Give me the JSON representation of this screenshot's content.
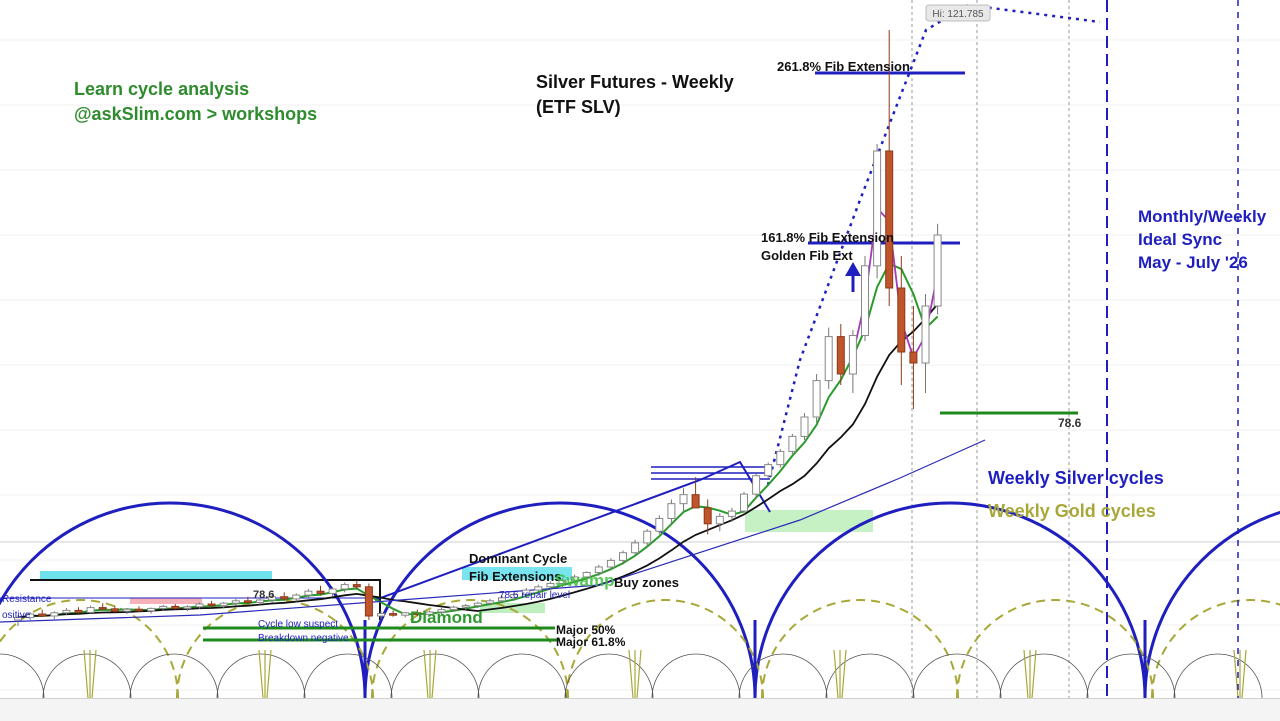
{
  "chart_data": {
    "type": "candlestick",
    "title": "Silver Futures - Weekly",
    "subtitle": "(ETF SLV)",
    "promo": {
      "line1": "Learn cycle analysis",
      "line2": "@askSlim.com > workshops"
    },
    "hi_label": "Hi: 121.785",
    "high_value": 121.785,
    "fib_levels": [
      {
        "label": "261.8% Fib Extension",
        "ratio": 2.618
      },
      {
        "label": "161.8% Fib Extension",
        "ratio": 1.618
      }
    ],
    "golden_fib_label": "Golden Fib Ext",
    "level_786_label": "78.6",
    "sync_note": [
      "Monthly/Weekly",
      "Ideal Sync",
      "May - July '26"
    ],
    "cycle_legend": [
      {
        "name": "Weekly Silver cycles",
        "color": "#1f1fbf"
      },
      {
        "name": "Weekly Gold cycles",
        "color": "#a8a838"
      }
    ],
    "zone_labels": {
      "dominant_cycle": "Dominant Cycle",
      "fib_extensions": "Fib Extensions",
      "swamp": "Swamp",
      "buy_zones": "Buy zones",
      "diamond": "Diamond",
      "major_50": "Major 50%",
      "major_618": "Major 61.8%",
      "resistance": "Resistance",
      "positive": "ositive",
      "left_786": "78.6",
      "repair_level": "78.6 repair level",
      "cycle_low_suspect": "Cycle low suspect",
      "breakdown_negative": "Breakdown negative"
    },
    "colors": {
      "up_candle": "#ffffff",
      "down_candle": "#c0542a",
      "ma_fast": "#2a9a2a",
      "ma_slow": "#111111",
      "ma_purple": "#a33ab8",
      "silver_cycle": "#1f1fbf",
      "gold_cycle": "#a8a838",
      "fib_line": "#1f1fbf",
      "green_level": "#1e8a1e",
      "promo_text": "#2e8b2e",
      "cyan_zone": "#3fd8e8"
    },
    "candles": [
      {
        "o": 15.0,
        "h": 16.2,
        "l": 13.5,
        "c": 15.6
      },
      {
        "o": 15.6,
        "h": 17.0,
        "l": 15.0,
        "c": 16.5
      },
      {
        "o": 16.5,
        "h": 17.6,
        "l": 15.8,
        "c": 16.0
      },
      {
        "o": 16.0,
        "h": 17.2,
        "l": 15.2,
        "c": 16.8
      },
      {
        "o": 16.8,
        "h": 18.0,
        "l": 16.2,
        "c": 17.4
      },
      {
        "o": 17.4,
        "h": 18.2,
        "l": 16.4,
        "c": 16.9
      },
      {
        "o": 16.9,
        "h": 18.6,
        "l": 16.6,
        "c": 18.1
      },
      {
        "o": 18.1,
        "h": 19.2,
        "l": 17.5,
        "c": 17.8
      },
      {
        "o": 17.8,
        "h": 18.6,
        "l": 16.8,
        "c": 17.2
      },
      {
        "o": 17.2,
        "h": 18.0,
        "l": 16.5,
        "c": 17.7
      },
      {
        "o": 17.7,
        "h": 18.4,
        "l": 17.0,
        "c": 17.3
      },
      {
        "o": 17.3,
        "h": 18.1,
        "l": 16.6,
        "c": 17.9
      },
      {
        "o": 17.9,
        "h": 18.8,
        "l": 17.4,
        "c": 18.4
      },
      {
        "o": 18.4,
        "h": 19.0,
        "l": 17.6,
        "c": 17.9
      },
      {
        "o": 17.9,
        "h": 18.7,
        "l": 17.2,
        "c": 18.3
      },
      {
        "o": 18.3,
        "h": 19.4,
        "l": 17.8,
        "c": 19.0
      },
      {
        "o": 19.0,
        "h": 19.8,
        "l": 18.2,
        "c": 18.6
      },
      {
        "o": 18.6,
        "h": 19.5,
        "l": 18.0,
        "c": 19.2
      },
      {
        "o": 19.2,
        "h": 20.2,
        "l": 18.6,
        "c": 19.8
      },
      {
        "o": 19.8,
        "h": 20.6,
        "l": 19.0,
        "c": 19.4
      },
      {
        "o": 19.4,
        "h": 20.4,
        "l": 18.8,
        "c": 20.0
      },
      {
        "o": 20.0,
        "h": 21.0,
        "l": 19.4,
        "c": 20.6
      },
      {
        "o": 20.6,
        "h": 21.4,
        "l": 19.8,
        "c": 20.2
      },
      {
        "o": 20.2,
        "h": 21.2,
        "l": 19.6,
        "c": 20.9
      },
      {
        "o": 20.9,
        "h": 22.0,
        "l": 20.4,
        "c": 21.6
      },
      {
        "o": 21.6,
        "h": 22.6,
        "l": 20.8,
        "c": 21.2
      },
      {
        "o": 21.2,
        "h": 22.4,
        "l": 20.6,
        "c": 22.0
      },
      {
        "o": 22.0,
        "h": 23.2,
        "l": 21.4,
        "c": 22.8
      },
      {
        "o": 22.8,
        "h": 23.6,
        "l": 22.0,
        "c": 22.4
      },
      {
        "o": 22.4,
        "h": 23.0,
        "l": 15.0,
        "c": 16.0
      },
      {
        "o": 16.0,
        "h": 17.2,
        "l": 15.2,
        "c": 16.6
      },
      {
        "o": 16.6,
        "h": 17.4,
        "l": 15.8,
        "c": 16.2
      },
      {
        "o": 16.2,
        "h": 17.0,
        "l": 15.6,
        "c": 16.8
      },
      {
        "o": 16.8,
        "h": 17.6,
        "l": 16.0,
        "c": 16.4
      },
      {
        "o": 16.4,
        "h": 17.4,
        "l": 16.0,
        "c": 17.0
      },
      {
        "o": 17.0,
        "h": 18.0,
        "l": 16.4,
        "c": 17.6
      },
      {
        "o": 17.6,
        "h": 18.6,
        "l": 17.0,
        "c": 18.2
      },
      {
        "o": 18.2,
        "h": 19.0,
        "l": 17.4,
        "c": 18.6
      },
      {
        "o": 18.6,
        "h": 19.6,
        "l": 18.0,
        "c": 19.2
      },
      {
        "o": 19.2,
        "h": 20.2,
        "l": 18.6,
        "c": 19.8
      },
      {
        "o": 19.8,
        "h": 20.8,
        "l": 19.2,
        "c": 20.4
      },
      {
        "o": 20.4,
        "h": 21.4,
        "l": 19.8,
        "c": 21.0
      },
      {
        "o": 21.0,
        "h": 22.2,
        "l": 20.4,
        "c": 21.8
      },
      {
        "o": 21.8,
        "h": 22.8,
        "l": 21.0,
        "c": 22.4
      },
      {
        "o": 22.4,
        "h": 23.4,
        "l": 21.8,
        "c": 23.0
      },
      {
        "o": 23.0,
        "h": 24.0,
        "l": 22.2,
        "c": 23.6
      },
      {
        "o": 23.6,
        "h": 24.6,
        "l": 23.0,
        "c": 24.2
      },
      {
        "o": 24.2,
        "h": 25.2,
        "l": 23.6,
        "c": 25.0
      },
      {
        "o": 25.0,
        "h": 26.4,
        "l": 24.4,
        "c": 26.0
      },
      {
        "o": 26.0,
        "h": 27.6,
        "l": 25.4,
        "c": 27.2
      },
      {
        "o": 27.2,
        "h": 29.0,
        "l": 26.4,
        "c": 28.6
      },
      {
        "o": 28.6,
        "h": 31.0,
        "l": 28.0,
        "c": 30.4
      },
      {
        "o": 30.4,
        "h": 33.0,
        "l": 29.6,
        "c": 32.6
      },
      {
        "o": 32.6,
        "h": 35.6,
        "l": 32.0,
        "c": 35.0
      },
      {
        "o": 35.0,
        "h": 38.6,
        "l": 34.0,
        "c": 37.8
      },
      {
        "o": 37.8,
        "h": 41.0,
        "l": 36.0,
        "c": 39.5
      },
      {
        "o": 39.5,
        "h": 44.0,
        "l": 37.6,
        "c": 37.0
      },
      {
        "o": 37.0,
        "h": 38.6,
        "l": 32.0,
        "c": 34.0
      },
      {
        "o": 34.0,
        "h": 36.0,
        "l": 32.6,
        "c": 35.4
      },
      {
        "o": 35.4,
        "h": 37.0,
        "l": 34.4,
        "c": 36.4
      },
      {
        "o": 36.4,
        "h": 40.0,
        "l": 35.8,
        "c": 39.6
      },
      {
        "o": 39.6,
        "h": 45.0,
        "l": 39.0,
        "c": 44.4
      },
      {
        "o": 44.4,
        "h": 48.0,
        "l": 43.6,
        "c": 47.4
      },
      {
        "o": 47.4,
        "h": 52.0,
        "l": 46.6,
        "c": 51.2
      },
      {
        "o": 51.2,
        "h": 57.0,
        "l": 50.4,
        "c": 56.2
      },
      {
        "o": 56.2,
        "h": 63.0,
        "l": 55.0,
        "c": 62.0
      },
      {
        "o": 62.0,
        "h": 72.0,
        "l": 60.6,
        "c": 70.8
      },
      {
        "o": 70.8,
        "h": 80.4,
        "l": 69.0,
        "c": 78.8
      },
      {
        "o": 78.8,
        "h": 81.0,
        "l": 70.0,
        "c": 72.0
      },
      {
        "o": 72.0,
        "h": 80.0,
        "l": 68.0,
        "c": 79.0
      },
      {
        "o": 79.0,
        "h": 92.0,
        "l": 78.0,
        "c": 90.6
      },
      {
        "o": 90.6,
        "h": 108.0,
        "l": 88.6,
        "c": 107.0
      },
      {
        "o": 107.0,
        "h": 121.785,
        "l": 84.0,
        "c": 87.0
      },
      {
        "o": 87.0,
        "h": 92.0,
        "l": 70.0,
        "c": 76.0
      },
      {
        "o": 76.0,
        "h": 84.0,
        "l": 64.0,
        "c": 74.0
      },
      {
        "o": 74.0,
        "h": 86.0,
        "l": 68.0,
        "c": 84.0
      },
      {
        "o": 84.0,
        "h": 96.6,
        "l": 82.6,
        "c": 95.0
      }
    ]
  }
}
